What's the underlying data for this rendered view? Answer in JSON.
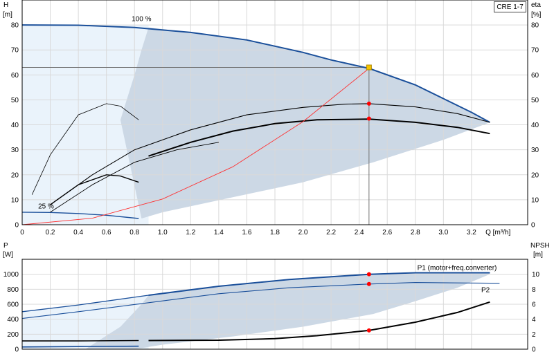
{
  "pump_label": "CRE 1-7",
  "chart_data": [
    {
      "type": "line",
      "panel": "head-efficiency",
      "left_axis": {
        "label": "H",
        "unit": "[m]",
        "ylim": [
          0,
          90
        ],
        "ticks": [
          0,
          10,
          20,
          30,
          40,
          50,
          60,
          70,
          80
        ]
      },
      "right_axis": {
        "label": "eta",
        "unit": "[%]",
        "ylim": [
          0,
          90
        ],
        "ticks": [
          0,
          10,
          20,
          30,
          40,
          50,
          60,
          70,
          80
        ]
      },
      "x_axis": {
        "label": "Q [m³/h]",
        "xlim": [
          0,
          3.6
        ],
        "ticks": [
          0,
          0.2,
          0.4,
          0.6,
          0.8,
          1.0,
          1.2,
          1.4,
          1.6,
          1.8,
          2.0,
          2.2,
          2.4,
          2.6,
          2.8,
          3.0,
          3.2
        ],
        "tick_labels": [
          "0",
          "0.2",
          "0.4",
          "0.6",
          "0.8",
          "1.0",
          "1.2",
          "1.4",
          "1.6",
          "1.8",
          "2.0",
          "2.2",
          "2.4",
          "2.6",
          "2.8",
          "3.0",
          "3.2"
        ]
      },
      "grid": true,
      "annotations": [
        {
          "text": "100 %",
          "x": 0.85,
          "y": 81.5
        },
        {
          "text": "25 %",
          "x": 0.17,
          "y": 6.5
        }
      ],
      "duty_point": {
        "q": 2.47,
        "h": 63,
        "eta": 48.5,
        "eta_motor": 42.5
      },
      "series": [
        {
          "role": "head-100",
          "x": [
            0,
            0.4,
            0.8,
            1.2,
            1.6,
            2.0,
            2.2,
            2.47,
            2.8,
            3.0,
            3.2,
            3.33
          ],
          "y": [
            80,
            79.9,
            79,
            77,
            74,
            69,
            66,
            62.6,
            56,
            50.5,
            45,
            41
          ]
        },
        {
          "role": "head-25",
          "x": [
            0,
            0.2,
            0.4,
            0.6,
            0.83
          ],
          "y": [
            5,
            4.9,
            4.5,
            3.8,
            2.5
          ]
        },
        {
          "role": "eta-100",
          "x": [
            0.9,
            1.2,
            1.5,
            1.8,
            2.1,
            2.47,
            2.8,
            3.1,
            3.33
          ],
          "y": [
            27.5,
            33,
            37.5,
            40.5,
            42,
            42.3,
            41,
            39,
            36.5
          ]
        },
        {
          "role": "eta-total-100",
          "x": [
            0.2,
            0.5,
            0.8,
            1.2,
            1.6,
            2.0,
            2.3,
            2.47,
            2.8,
            3.1,
            3.33
          ],
          "y": [
            8,
            20,
            30,
            38,
            44,
            47,
            48.3,
            48.5,
            47.2,
            44.5,
            41
          ]
        },
        {
          "role": "eta-lower-100",
          "x": [
            0.2,
            0.5,
            0.8,
            1.1,
            1.4
          ],
          "y": [
            5,
            16,
            25,
            30,
            33
          ]
        },
        {
          "role": "eta-low-motor",
          "x": [
            0.2,
            0.4,
            0.6,
            0.7,
            0.83
          ],
          "y": [
            8,
            16,
            20,
            19.5,
            17
          ]
        },
        {
          "role": "eta-low-total",
          "x": [
            0.07,
            0.2,
            0.4,
            0.6,
            0.7,
            0.83
          ],
          "y": [
            12,
            28,
            44,
            48.5,
            47.5,
            42
          ]
        },
        {
          "role": "system-curve",
          "x": [
            0,
            0.5,
            1.0,
            1.5,
            2.0,
            2.47
          ],
          "y": [
            0,
            2.6,
            10.3,
            23.2,
            41.3,
            62.6
          ]
        }
      ]
    },
    {
      "type": "line",
      "panel": "power-npsh",
      "left_axis": {
        "label": "P",
        "unit": "[W]",
        "ylim": [
          0,
          1200
        ],
        "ticks": [
          0,
          200,
          400,
          600,
          800,
          1000
        ]
      },
      "right_axis": {
        "label": "NPSH",
        "unit": "[m]",
        "ylim": [
          0,
          12
        ],
        "ticks": [
          0,
          2,
          4,
          6,
          8,
          10
        ]
      },
      "x_axis": {
        "xlim": [
          0,
          3.6
        ],
        "ticks": [
          0,
          0.2,
          0.4,
          0.6,
          0.8,
          1.0,
          1.2,
          1.4,
          1.6,
          1.8,
          2.0,
          2.2,
          2.4,
          2.6,
          2.8,
          3.0,
          3.2
        ]
      },
      "grid": true,
      "legend": [
        {
          "text": "P1 (motor+freq.converter)",
          "color": "#1a4f9a"
        },
        {
          "text": "P2",
          "color": "#1a4f9a"
        }
      ],
      "duty_point": {
        "q": 2.47,
        "p1": 1000,
        "p2": 870,
        "npsh": 2.5
      },
      "series": [
        {
          "name": "P1 (motor+freq.converter)",
          "x": [
            0,
            0.4,
            0.9,
            1.4,
            1.9,
            2.47,
            2.8,
            3.33
          ],
          "y": [
            500,
            590,
            720,
            840,
            930,
            1000,
            1020,
            1020
          ]
        },
        {
          "name": "P2",
          "x": [
            0,
            0.4,
            0.9,
            1.4,
            1.9,
            2.47,
            2.8,
            3.4
          ],
          "y": [
            410,
            500,
            620,
            740,
            820,
            870,
            890,
            880
          ]
        },
        {
          "role": "npsh",
          "x": [
            0.9,
            1.4,
            1.8,
            2.1,
            2.47,
            2.8,
            3.1,
            3.33
          ],
          "y": [
            1.15,
            1.2,
            1.4,
            1.8,
            2.5,
            3.6,
            4.9,
            6.3
          ]
        },
        {
          "role": "p1-25",
          "x": [
            0,
            0.4,
            0.83
          ],
          "y": [
            110,
            110,
            115
          ]
        },
        {
          "role": "p2-25",
          "x": [
            0,
            0.4,
            0.83
          ],
          "y": [
            30,
            35,
            40
          ]
        }
      ]
    }
  ]
}
